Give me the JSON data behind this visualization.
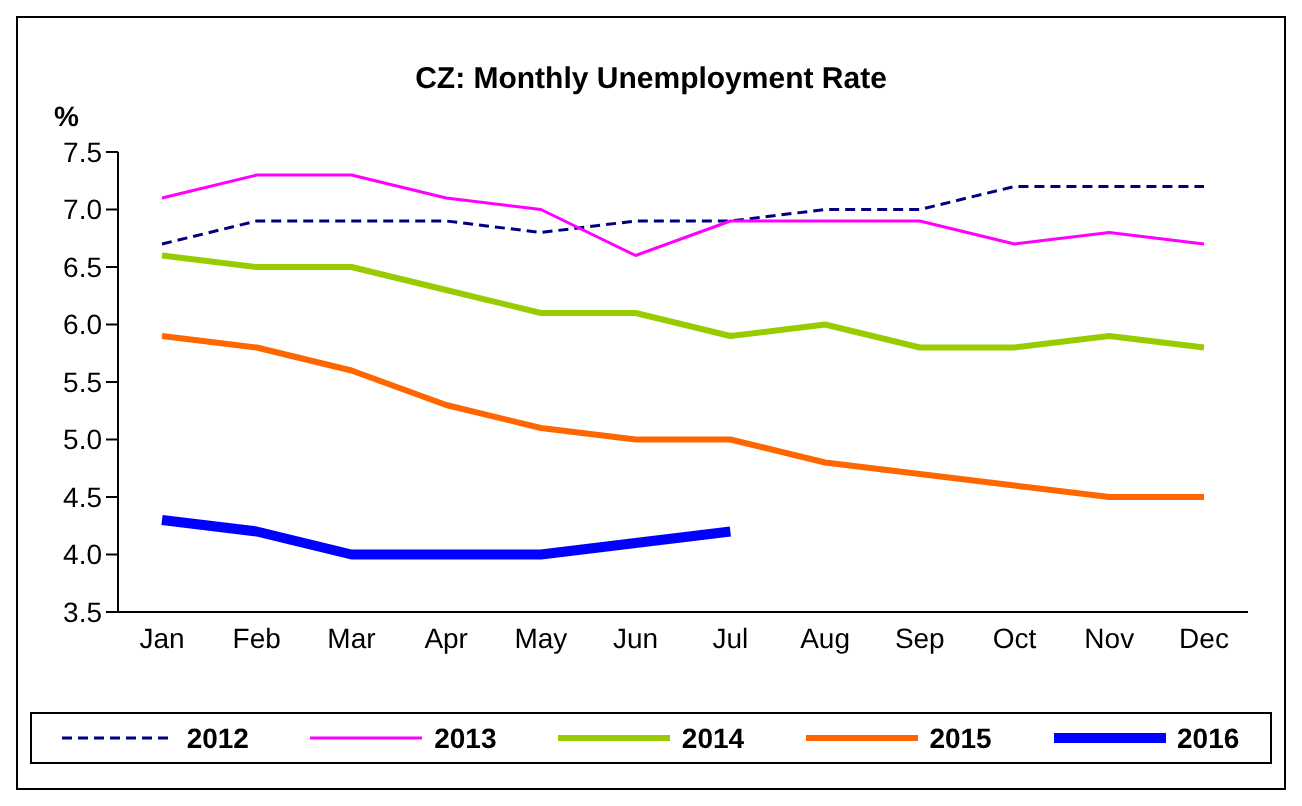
{
  "chart_data": {
    "type": "line",
    "title": "CZ: Monthly Unemployment Rate",
    "ylabel": "%",
    "categories": [
      "Jan",
      "Feb",
      "Mar",
      "Apr",
      "May",
      "Jun",
      "Jul",
      "Aug",
      "Sep",
      "Oct",
      "Nov",
      "Dec"
    ],
    "series": [
      {
        "name": "2012",
        "color": "#000080",
        "line_style": "dashed",
        "values": [
          6.7,
          6.9,
          6.9,
          6.9,
          6.8,
          6.9,
          6.9,
          7.0,
          7.0,
          7.2,
          7.2,
          7.2
        ]
      },
      {
        "name": "2013",
        "color": "#ff00ff",
        "values": [
          7.1,
          7.3,
          7.3,
          7.1,
          7.0,
          6.6,
          6.9,
          6.9,
          6.9,
          6.7,
          6.8,
          6.7
        ]
      },
      {
        "name": "2014",
        "color": "#99cc00",
        "values": [
          6.6,
          6.5,
          6.5,
          6.3,
          6.1,
          6.1,
          5.9,
          6.0,
          5.8,
          5.8,
          5.9,
          5.8
        ]
      },
      {
        "name": "2015",
        "color": "#ff6600",
        "values": [
          5.9,
          5.8,
          5.6,
          5.3,
          5.1,
          5.0,
          5.0,
          4.8,
          4.7,
          4.6,
          4.5,
          4.5
        ]
      },
      {
        "name": "2016",
        "color": "#0000ff",
        "values": [
          4.3,
          4.2,
          4.0,
          4.0,
          4.0,
          4.1,
          4.2,
          null,
          null,
          null,
          null,
          null
        ]
      }
    ],
    "ylim": [
      3.5,
      7.5
    ],
    "yticks": [
      {
        "value": 3.5,
        "label": "3.5"
      },
      {
        "value": 4,
        "label": "4.0"
      },
      {
        "value": 4.5,
        "label": "4.5"
      },
      {
        "value": 5,
        "label": "5.0"
      },
      {
        "value": 5.5,
        "label": "5.5"
      },
      {
        "value": 6,
        "label": "6.0"
      },
      {
        "value": 6.5,
        "label": "6.5"
      },
      {
        "value": 7,
        "label": "7.0"
      },
      {
        "value": 7.5,
        "label": "7.5"
      }
    ],
    "grid": false,
    "legend": "bottom",
    "marker": "none",
    "line_style": "solid"
  }
}
